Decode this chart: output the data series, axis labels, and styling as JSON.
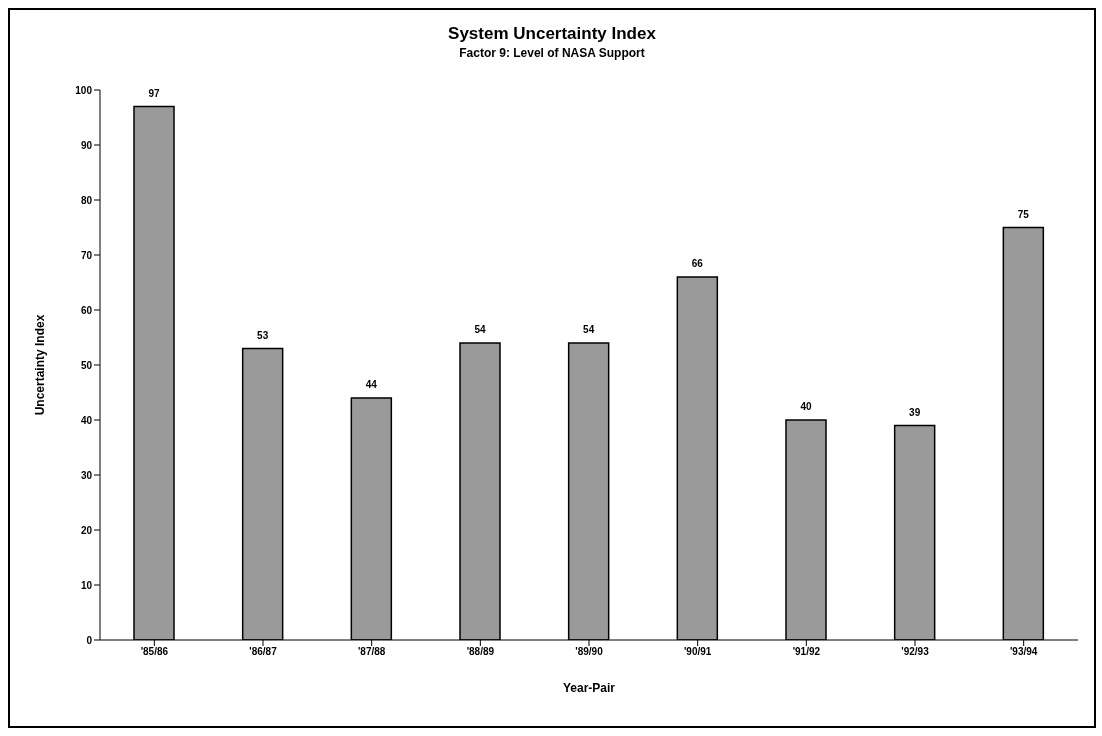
{
  "chart_data": {
    "type": "bar",
    "title": "System Uncertainty Index",
    "subtitle": "Factor 9:  Level of NASA Support",
    "xlabel": "Year-Pair",
    "ylabel": "Uncertainty Index",
    "categories": [
      "'85/86",
      "'86/87",
      "'87/88",
      "'88/89",
      "'89/90",
      "'90/91",
      "'91/92",
      "'92/93",
      "'93/94"
    ],
    "values": [
      97,
      53,
      44,
      54,
      54,
      66,
      40,
      39,
      75
    ],
    "color": "#9a9a9a",
    "ylim": [
      0,
      100
    ],
    "yticks": [
      0,
      10,
      20,
      30,
      40,
      50,
      60,
      70,
      80,
      90,
      100
    ],
    "grid": false,
    "data_labels": true
  }
}
